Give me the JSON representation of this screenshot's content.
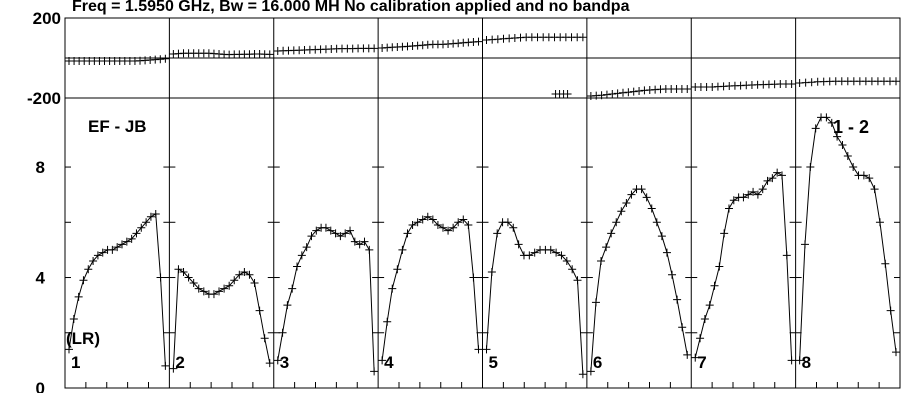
{
  "chart_data": {
    "type": "line",
    "title": "Freq = 1.5950 GHz, Bw = 16.000 MH   No calibration applied and no bandpa",
    "baseline_label": "EF - JB",
    "polarization_label": "(LR)",
    "corner_label": "1 - 2",
    "line_color": "#000000",
    "phase_panel": {
      "y_ticks": [
        "200",
        "-200"
      ],
      "ylim": [
        -200,
        200
      ]
    },
    "amp_panel": {
      "y_ticks": [
        "8",
        "4",
        "0"
      ],
      "ylim": [
        0,
        10.5
      ]
    },
    "channels": [
      {
        "label": "1",
        "phase": [
          -15,
          -15,
          -15,
          -15,
          -15,
          -15,
          -15,
          -15,
          -15,
          -15,
          -15,
          -15,
          -15,
          -15,
          -14,
          -12,
          -10,
          -8,
          -6,
          -4
        ],
        "amp": [
          1.4,
          2.5,
          3.3,
          3.9,
          4.3,
          4.6,
          4.8,
          4.9,
          5.0,
          5.0,
          5.1,
          5.2,
          5.3,
          5.4,
          5.6,
          5.8,
          6.0,
          6.2,
          6.3,
          4.0,
          0.8
        ]
      },
      {
        "label": "2",
        "phase": [
          20,
          22,
          24,
          24,
          24,
          24,
          24,
          24,
          22,
          20,
          18,
          17,
          18,
          18,
          19,
          19,
          20,
          20,
          19,
          18
        ],
        "amp": [
          0.7,
          4.3,
          4.2,
          4.0,
          3.8,
          3.6,
          3.5,
          3.4,
          3.4,
          3.5,
          3.6,
          3.7,
          3.9,
          4.1,
          4.2,
          4.1,
          3.8,
          2.8,
          1.8,
          0.9
        ]
      },
      {
        "label": "3",
        "phase": [
          35,
          36,
          37,
          38,
          39,
          40,
          41,
          42,
          43,
          44,
          45,
          46,
          47,
          47,
          47,
          48,
          48,
          48,
          48
        ],
        "amp": [
          1.0,
          2.0,
          3.0,
          3.6,
          4.4,
          4.8,
          5.1,
          5.5,
          5.7,
          5.8,
          5.8,
          5.7,
          5.6,
          5.5,
          5.6,
          5.7,
          5.3,
          5.2,
          5.3,
          5.0,
          0.6
        ]
      },
      {
        "label": "4",
        "phase": [
          50,
          52,
          54,
          55,
          56,
          58,
          60,
          62,
          64,
          66,
          68,
          68,
          68,
          70,
          72,
          74,
          76,
          78,
          80,
          82
        ],
        "amp": [
          1.0,
          2.4,
          3.6,
          4.3,
          5.0,
          5.6,
          5.9,
          6.0,
          6.1,
          6.2,
          6.1,
          5.9,
          5.8,
          5.7,
          5.8,
          6.0,
          6.1,
          5.9,
          4.0,
          1.4
        ]
      },
      {
        "label": "5",
        "phase": [
          90,
          92,
          94,
          96,
          98,
          100,
          102,
          104,
          104,
          104,
          104,
          104,
          104,
          104,
          104,
          104,
          104,
          104
        ],
        "phase2": [
          -180,
          -180,
          -180,
          -180
        ],
        "amp": [
          1.4,
          4.2,
          5.6,
          6.0,
          6.0,
          5.8,
          5.2,
          4.8,
          4.8,
          4.9,
          5.0,
          5.0,
          5.0,
          4.9,
          4.8,
          4.6,
          4.3,
          3.9,
          0.5
        ]
      },
      {
        "label": "6",
        "phase": [
          -190,
          -188,
          -186,
          -183,
          -180,
          -177,
          -174,
          -171,
          -168,
          -165,
          -162,
          -160,
          -158,
          -156,
          -155,
          -155,
          -155,
          -155,
          -155
        ],
        "amp": [
          0.6,
          3.1,
          4.6,
          5.1,
          5.6,
          6.0,
          6.4,
          6.7,
          7.0,
          7.2,
          7.2,
          6.9,
          6.5,
          6.0,
          5.5,
          4.9,
          4.1,
          3.2,
          2.2,
          1.2
        ]
      },
      {
        "label": "7",
        "phase": [
          -145,
          -145,
          -145,
          -145,
          -143,
          -142,
          -140,
          -139,
          -138,
          -136,
          -135,
          -134,
          -133,
          -132,
          -131,
          -130,
          -130,
          -130
        ],
        "amp": [
          1.1,
          1.8,
          2.5,
          3.0,
          3.7,
          4.4,
          5.6,
          6.5,
          6.8,
          6.9,
          6.9,
          7.0,
          7.1,
          7.0,
          7.2,
          7.5,
          7.6,
          7.8,
          7.7,
          4.8,
          1.0
        ]
      },
      {
        "label": "8",
        "phase": [
          -125,
          -123,
          -121,
          -119,
          -118,
          -117,
          -116,
          -116,
          -116,
          -116,
          -116,
          -116,
          -116,
          -116,
          -116,
          -116,
          -116
        ],
        "amp": [
          1.0,
          5.2,
          8.0,
          9.4,
          9.8,
          9.8,
          9.6,
          9.1,
          8.8,
          8.4,
          8.0,
          7.7,
          7.7,
          7.6,
          7.2,
          6.0,
          4.5,
          2.8,
          1.3
        ]
      }
    ]
  }
}
